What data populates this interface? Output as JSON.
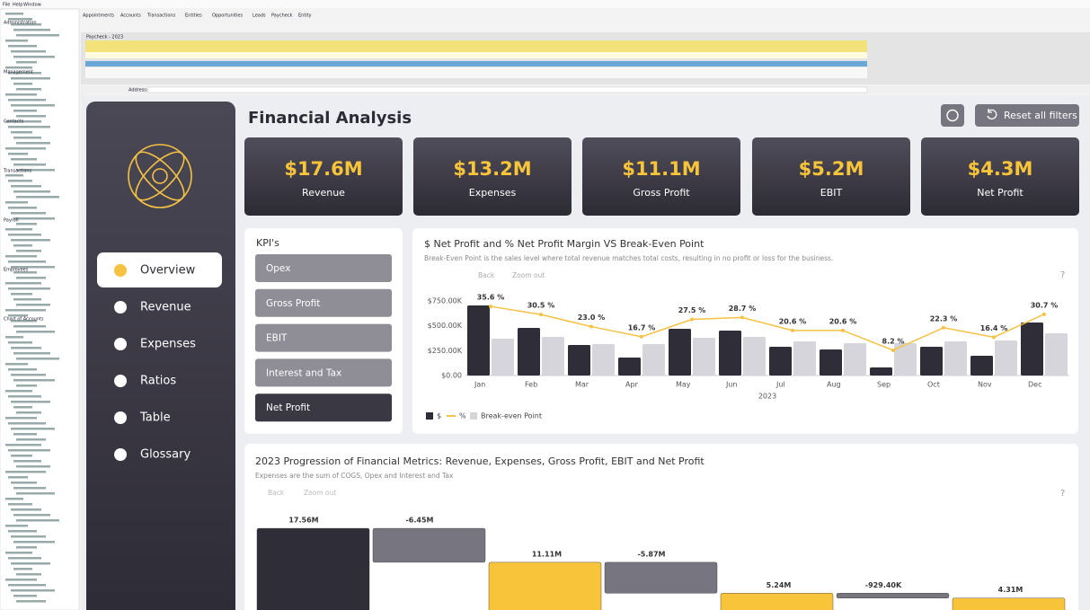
{
  "app": {
    "menu": [
      "File",
      "Help",
      "Window"
    ],
    "tabs": [
      "Appointments",
      "Accounts",
      "Transactions",
      "Entities",
      "Opportunities",
      "Leads",
      "Paycheck",
      "Entity"
    ],
    "grid_title": "Paycheck - 2023",
    "address_label": "Address:",
    "tree": [
      "Administration",
      "Management",
      "Contacts",
      "Transactions",
      "Payroll",
      "Employees",
      "Chart of Accounts"
    ]
  },
  "dashboard": {
    "title": "Financial Analysis",
    "reset_button": "Reset all filters",
    "kpis": [
      {
        "value": "$17.6M",
        "label": "Revenue"
      },
      {
        "value": "$13.2M",
        "label": "Expenses"
      },
      {
        "value": "$11.1M",
        "label": "Gross Profit"
      },
      {
        "value": "$5.2M",
        "label": "EBIT"
      },
      {
        "value": "$4.3M",
        "label": "Net Profit"
      }
    ],
    "nav": [
      "Overview",
      "Revenue",
      "Expenses",
      "Ratios",
      "Table",
      "Glossary"
    ],
    "kpi_panel": {
      "title": "KPI's",
      "items": [
        "Opex",
        "Gross Profit",
        "EBIT",
        "Interest and Tax",
        "Net Profit"
      ]
    }
  },
  "chart_data": [
    {
      "type": "bar_line",
      "title": "$ Net Profit and % Net Profit Margin VS Break-Even Point",
      "subtitle": "Break-Even Point is the sales level where total revenue matches total costs, resulting in no profit or loss for the business.",
      "toolbar": [
        "Back",
        "Zoom out"
      ],
      "x_label": "2023",
      "categories": [
        "Jan",
        "Feb",
        "Mar",
        "Apr",
        "May",
        "Jun",
        "Jul",
        "Aug",
        "Sep",
        "Oct",
        "Nov",
        "Dec"
      ],
      "series": [
        {
          "name": "$",
          "type": "bar",
          "color": "#2f2d38",
          "values": [
            705000,
            479000,
            307000,
            181000,
            470000,
            452000,
            289000,
            262000,
            81000,
            289000,
            199000,
            533000
          ]
        },
        {
          "name": "%",
          "type": "line",
          "axis": "y2",
          "color": "#f5c242",
          "values": [
            35.6,
            30.5,
            23.0,
            16.7,
            27.5,
            28.7,
            20.6,
            20.6,
            8.2,
            22.3,
            16.4,
            30.7
          ],
          "value_labels": [
            "35.6 %",
            "30.5 %",
            "23.0 %",
            "16.7 %",
            "27.5 %",
            "28.7 %",
            "20.6 %",
            "20.6 %",
            "8.2 %",
            "22.3 %",
            "16.4 %",
            "30.7 %"
          ]
        },
        {
          "name": "Break-even Point",
          "type": "bar",
          "color": "#d6d5dc",
          "values": [
            370000,
            389000,
            316000,
            316000,
            380000,
            389000,
            343000,
            325000,
            325000,
            343000,
            352000,
            425000
          ]
        }
      ],
      "ylim": [
        0,
        750000
      ],
      "yticks": [
        {
          "value": 0,
          "label": "$0.00"
        },
        {
          "value": 250000,
          "label": "$250.00K"
        },
        {
          "value": 500000,
          "label": "$500.00K"
        },
        {
          "value": 750000,
          "label": "$750.00K"
        }
      ],
      "y2lim": [
        -7.5,
        39
      ]
    },
    {
      "type": "waterfall",
      "title": "2023 Progression of Financial Metrics: Revenue, Expenses, Gross Profit, EBIT and Net Profit",
      "subtitle": "Expenses are the sum of COGS, Opex and Interest and Tax",
      "toolbar": [
        "Back",
        "Zoom out"
      ],
      "values": [
        17560000,
        -6450000,
        11110000,
        -5870000,
        5240000,
        -929400,
        4310000
      ],
      "value_labels": [
        "17.56M",
        "-6.45M",
        "11.11M",
        "-5.87M",
        "5.24M",
        "-929.40K",
        "4.31M"
      ],
      "kinds": [
        "start",
        "decrease",
        "total",
        "decrease",
        "total",
        "decrease",
        "total"
      ],
      "colors": {
        "start": "#2f2d38",
        "decrease": "#77757f",
        "total": "#f8c43a"
      },
      "ylim": [
        0,
        18600000
      ]
    }
  ]
}
